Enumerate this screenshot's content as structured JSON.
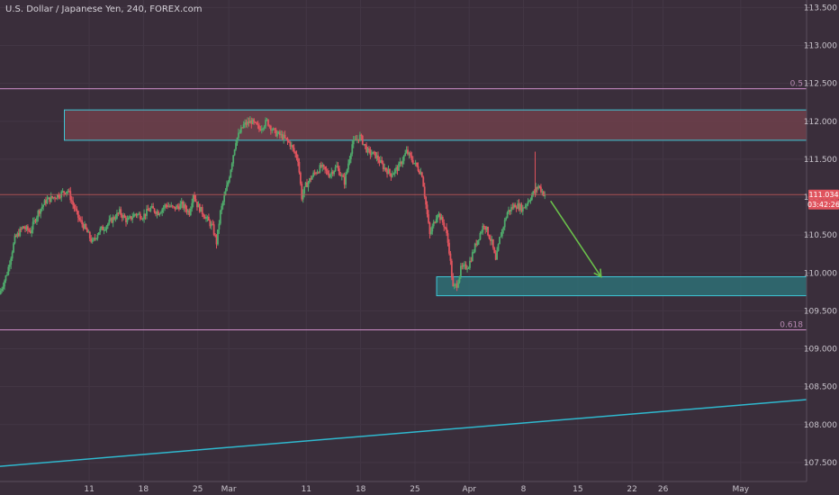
{
  "header": {
    "title": "U.S. Dollar / Japanese Yen, 240, FOREX.com"
  },
  "price_badges": {
    "last_price": "111.034",
    "countdown": "03:42:26"
  },
  "colors": {
    "background": "#3a2e3b",
    "bull_candle": "#4fa96b",
    "bear_candle": "#e0545e",
    "resistance_fill": "#6e3f4b",
    "support_fill": "#2f6b72",
    "zone_border": "#3ec7d6",
    "trendline": "#2fb9cf",
    "fib_line": "#d08fca",
    "arrow": "#6abf4b",
    "price_line": "#c85a5a",
    "badge": "#e0545e"
  },
  "chart_data": {
    "type": "candlestick",
    "title": "U.S. Dollar / Japanese Yen, 240, FOREX.com",
    "xlabel": "",
    "ylabel": "",
    "ylim": [
      107.25,
      113.6
    ],
    "y_ticks": [
      "113.500",
      "113.000",
      "112.500",
      "112.000",
      "111.500",
      "111.000",
      "110.500",
      "110.000",
      "109.500",
      "109.000",
      "108.500",
      "108.000",
      "107.500"
    ],
    "x_ticks": [
      "11",
      "18",
      "25",
      "Mar",
      "11",
      "18",
      "25",
      "Apr",
      "8",
      "15",
      "22",
      "26",
      "May"
    ],
    "x_tick_days": [
      -14,
      -7,
      0,
      4,
      14,
      21,
      28,
      35,
      42,
      49,
      56,
      60,
      70
    ],
    "day_range": [
      -25.5,
      78.5
    ],
    "series": {
      "close_path_points": [
        [
          -25.5,
          109.72
        ],
        [
          -24.5,
          110.0
        ],
        [
          -23.5,
          110.45
        ],
        [
          -22.5,
          110.6
        ],
        [
          -21.5,
          110.55
        ],
        [
          -20.5,
          110.8
        ],
        [
          -19.5,
          110.95
        ],
        [
          -18.5,
          111.0
        ],
        [
          -17.5,
          111.05
        ],
        [
          -16.7,
          111.1
        ],
        [
          -16.0,
          110.9
        ],
        [
          -15.2,
          110.7
        ],
        [
          -14.5,
          110.6
        ],
        [
          -13.5,
          110.4
        ],
        [
          -12.7,
          110.55
        ],
        [
          -12.0,
          110.6
        ],
        [
          -11.0,
          110.7
        ],
        [
          -10.0,
          110.8
        ],
        [
          -9.0,
          110.68
        ],
        [
          -8.0,
          110.78
        ],
        [
          -7.0,
          110.75
        ],
        [
          -6.0,
          110.85
        ],
        [
          -5.0,
          110.8
        ],
        [
          -4.0,
          110.9
        ],
        [
          -3.0,
          110.85
        ],
        [
          -2.0,
          110.9
        ],
        [
          -1.0,
          110.8
        ],
        [
          -0.5,
          111.05
        ],
        [
          0.0,
          110.9
        ],
        [
          1.0,
          110.75
        ],
        [
          2.0,
          110.6
        ],
        [
          2.5,
          110.4
        ],
        [
          3.0,
          110.8
        ],
        [
          4.0,
          111.2
        ],
        [
          5.0,
          111.75
        ],
        [
          6.0,
          111.95
        ],
        [
          7.0,
          112.0
        ],
        [
          8.0,
          111.9
        ],
        [
          9.0,
          112.0
        ],
        [
          10.0,
          111.85
        ],
        [
          11.0,
          111.8
        ],
        [
          12.0,
          111.7
        ],
        [
          13.0,
          111.5
        ],
        [
          13.5,
          111.0
        ],
        [
          14.0,
          111.15
        ],
        [
          15.0,
          111.3
        ],
        [
          16.0,
          111.4
        ],
        [
          17.0,
          111.3
        ],
        [
          18.0,
          111.4
        ],
        [
          19.0,
          111.2
        ],
        [
          20.0,
          111.7
        ],
        [
          21.0,
          111.8
        ],
        [
          22.0,
          111.6
        ],
        [
          23.0,
          111.55
        ],
        [
          24.0,
          111.4
        ],
        [
          25.0,
          111.3
        ],
        [
          26.0,
          111.4
        ],
        [
          27.0,
          111.6
        ],
        [
          28.0,
          111.45
        ],
        [
          29.0,
          111.3
        ],
        [
          29.5,
          110.9
        ],
        [
          30.0,
          110.5
        ],
        [
          31.0,
          110.8
        ],
        [
          32.0,
          110.6
        ],
        [
          32.5,
          110.3
        ],
        [
          33.0,
          109.8
        ],
        [
          33.5,
          109.85
        ],
        [
          34.0,
          110.05
        ],
        [
          35.0,
          110.1
        ],
        [
          36.0,
          110.4
        ],
        [
          37.0,
          110.65
        ],
        [
          38.0,
          110.4
        ],
        [
          38.5,
          110.15
        ],
        [
          39.0,
          110.45
        ],
        [
          40.0,
          110.8
        ],
        [
          41.0,
          110.9
        ],
        [
          42.0,
          110.85
        ],
        [
          43.0,
          111.0
        ],
        [
          44.0,
          111.15
        ],
        [
          44.8,
          111.03
        ]
      ],
      "last_price": 111.034
    },
    "annotations": {
      "resistance_zone": {
        "y_low": 111.75,
        "y_high": 112.15,
        "x_start_day": -17.2
      },
      "support_zone": {
        "y_low": 109.7,
        "y_high": 109.95,
        "x_start_day": 30.8
      },
      "fib_levels": [
        {
          "label": "0.5",
          "value": 112.43
        },
        {
          "label": "0.618",
          "value": 109.25
        }
      ],
      "trendline": {
        "start": [
          -25.5,
          107.45
        ],
        "end": [
          78.5,
          108.33
        ]
      },
      "projection_arrow": {
        "start": [
          45.5,
          110.95
        ],
        "end": [
          52.0,
          109.95
        ]
      },
      "price_line": 111.034,
      "spike_high": {
        "day": 43.5,
        "value": 111.6
      }
    }
  }
}
